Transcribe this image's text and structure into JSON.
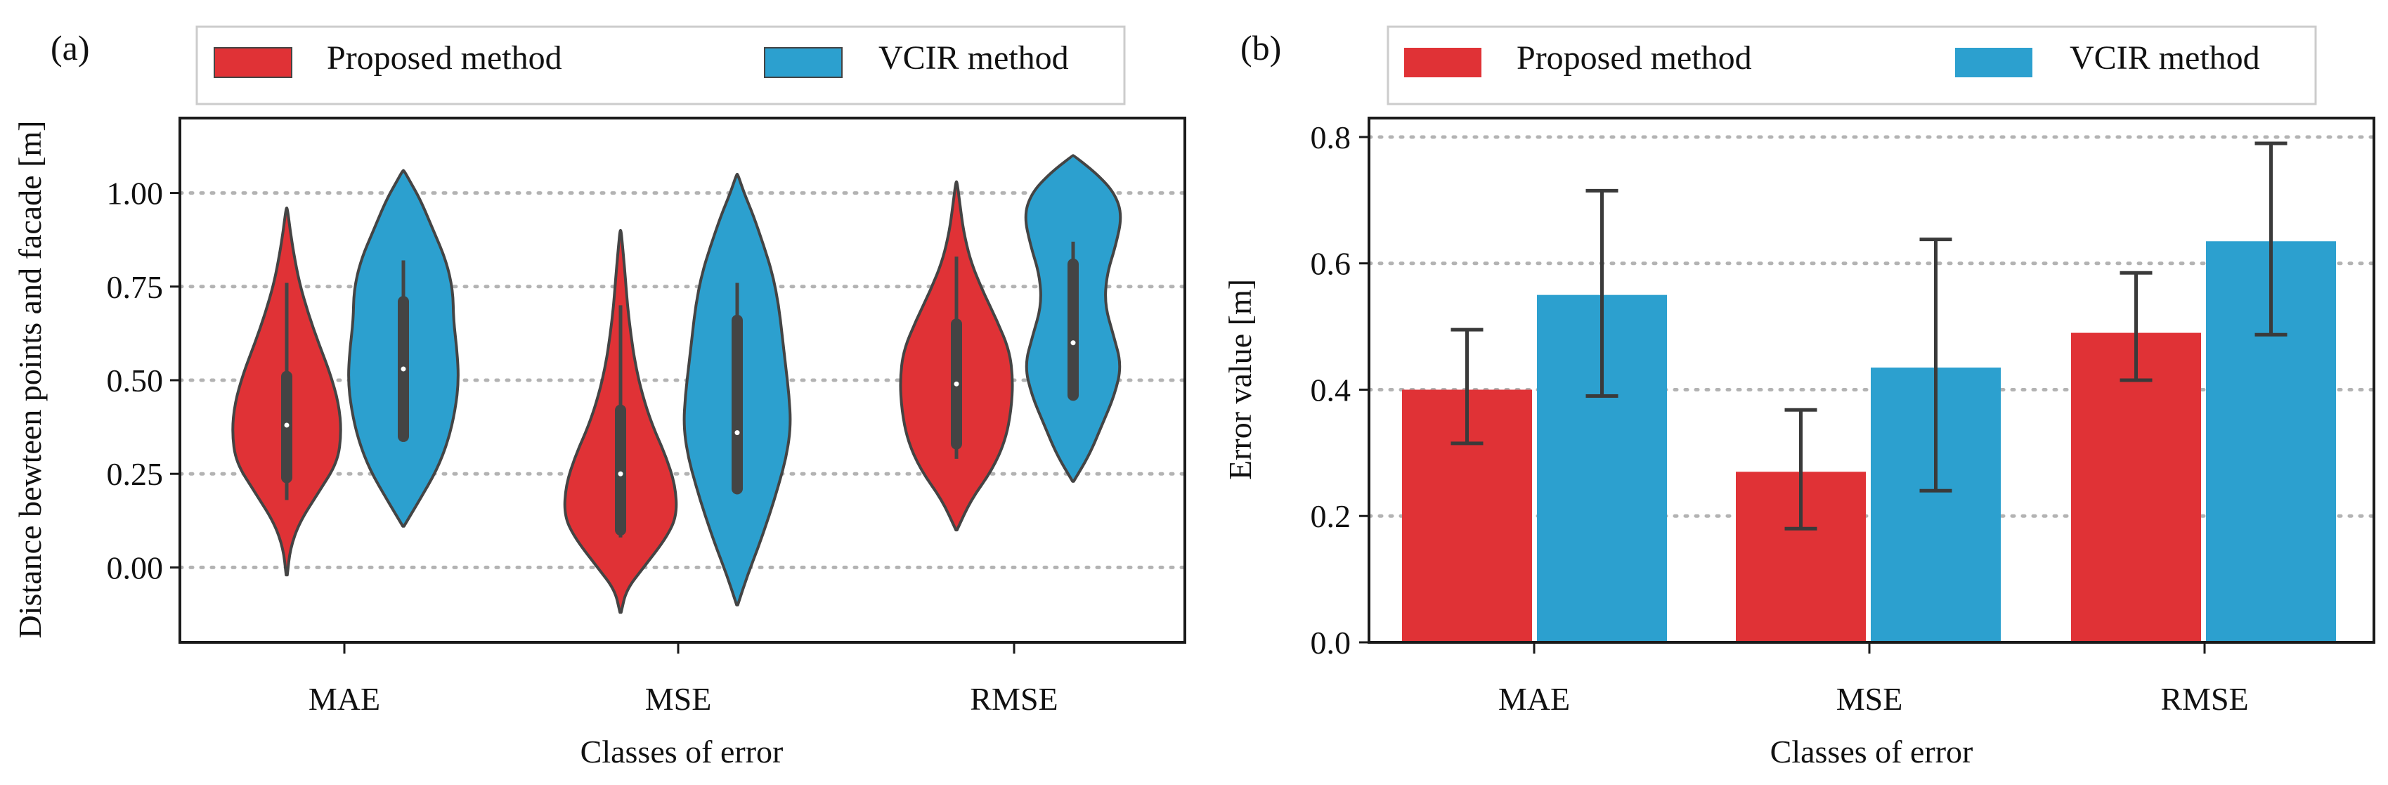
{
  "colors": {
    "proposed": "#e03236",
    "vcir": "#2ca0cf",
    "outline": "#444444",
    "grid": "#b3b3b3",
    "errorbar": "#3a3a3a"
  },
  "chart_data": [
    {
      "panel": "(a)",
      "type": "violin",
      "title": "",
      "xlabel": "Classes of error",
      "ylabel": "Distance bewteen points and facade [m]",
      "ylim": [
        -0.2,
        1.2
      ],
      "yticks": [
        "0.00",
        "0.25",
        "0.50",
        "0.75",
        "1.00"
      ],
      "categories": [
        "MAE",
        "MSE",
        "RMSE"
      ],
      "legend": {
        "position": "top",
        "entries": [
          "Proposed method",
          "VCIR method"
        ]
      },
      "grid": "horizontal dotted",
      "series": [
        {
          "name": "Proposed method",
          "color_key": "proposed",
          "violins": [
            {
              "category": "MAE",
              "median": 0.38,
              "q1": 0.24,
              "q3": 0.51,
              "whisker_low": 0.18,
              "whisker_high": 0.76,
              "profile": [
                [
                  -0.02,
                  0.01
                ],
                [
                  0.05,
                  0.06
                ],
                [
                  0.12,
                  0.22
                ],
                [
                  0.2,
                  0.55
                ],
                [
                  0.28,
                  0.88
                ],
                [
                  0.36,
                  0.95
                ],
                [
                  0.44,
                  0.9
                ],
                [
                  0.52,
                  0.75
                ],
                [
                  0.6,
                  0.55
                ],
                [
                  0.68,
                  0.37
                ],
                [
                  0.76,
                  0.22
                ],
                [
                  0.84,
                  0.12
                ],
                [
                  0.9,
                  0.06
                ],
                [
                  0.96,
                  0.01
                ]
              ]
            },
            {
              "category": "MSE",
              "median": 0.25,
              "q1": 0.1,
              "q3": 0.42,
              "whisker_low": 0.08,
              "whisker_high": 0.7,
              "profile": [
                [
                  -0.12,
                  0.01
                ],
                [
                  -0.06,
                  0.1
                ],
                [
                  0.0,
                  0.4
                ],
                [
                  0.08,
                  0.8
                ],
                [
                  0.14,
                  0.98
                ],
                [
                  0.22,
                  0.95
                ],
                [
                  0.3,
                  0.78
                ],
                [
                  0.38,
                  0.55
                ],
                [
                  0.46,
                  0.38
                ],
                [
                  0.54,
                  0.26
                ],
                [
                  0.62,
                  0.18
                ],
                [
                  0.7,
                  0.12
                ],
                [
                  0.78,
                  0.08
                ],
                [
                  0.85,
                  0.04
                ],
                [
                  0.9,
                  0.01
                ]
              ]
            },
            {
              "category": "RMSE",
              "median": 0.49,
              "q1": 0.33,
              "q3": 0.65,
              "whisker_low": 0.29,
              "whisker_high": 0.83,
              "profile": [
                [
                  0.1,
                  0.01
                ],
                [
                  0.18,
                  0.25
                ],
                [
                  0.26,
                  0.62
                ],
                [
                  0.34,
                  0.85
                ],
                [
                  0.42,
                  0.95
                ],
                [
                  0.5,
                  0.98
                ],
                [
                  0.58,
                  0.92
                ],
                [
                  0.66,
                  0.7
                ],
                [
                  0.74,
                  0.45
                ],
                [
                  0.82,
                  0.24
                ],
                [
                  0.9,
                  0.12
                ],
                [
                  0.97,
                  0.06
                ],
                [
                  1.03,
                  0.01
                ]
              ]
            }
          ]
        },
        {
          "name": "VCIR method",
          "color_key": "vcir",
          "violins": [
            {
              "category": "MAE",
              "median": 0.53,
              "q1": 0.35,
              "q3": 0.71,
              "whisker_low": 0.35,
              "whisker_high": 0.82,
              "profile": [
                [
                  0.11,
                  0.01
                ],
                [
                  0.18,
                  0.28
                ],
                [
                  0.26,
                  0.58
                ],
                [
                  0.34,
                  0.78
                ],
                [
                  0.42,
                  0.9
                ],
                [
                  0.5,
                  0.96
                ],
                [
                  0.58,
                  0.93
                ],
                [
                  0.66,
                  0.87
                ],
                [
                  0.74,
                  0.86
                ],
                [
                  0.82,
                  0.74
                ],
                [
                  0.9,
                  0.52
                ],
                [
                  0.98,
                  0.3
                ],
                [
                  1.03,
                  0.12
                ],
                [
                  1.06,
                  0.01
                ]
              ]
            },
            {
              "category": "MSE",
              "median": 0.36,
              "q1": 0.21,
              "q3": 0.66,
              "whisker_low": 0.21,
              "whisker_high": 0.76,
              "profile": [
                [
                  -0.1,
                  0.01
                ],
                [
                  -0.02,
                  0.18
                ],
                [
                  0.06,
                  0.38
                ],
                [
                  0.14,
                  0.56
                ],
                [
                  0.22,
                  0.72
                ],
                [
                  0.3,
                  0.86
                ],
                [
                  0.38,
                  0.93
                ],
                [
                  0.46,
                  0.9
                ],
                [
                  0.54,
                  0.84
                ],
                [
                  0.62,
                  0.78
                ],
                [
                  0.7,
                  0.72
                ],
                [
                  0.78,
                  0.62
                ],
                [
                  0.86,
                  0.46
                ],
                [
                  0.94,
                  0.28
                ],
                [
                  1.0,
                  0.12
                ],
                [
                  1.05,
                  0.01
                ]
              ]
            },
            {
              "category": "RMSE",
              "median": 0.6,
              "q1": 0.46,
              "q3": 0.81,
              "whisker_low": 0.45,
              "whisker_high": 0.87,
              "profile": [
                [
                  0.23,
                  0.01
                ],
                [
                  0.3,
                  0.28
                ],
                [
                  0.38,
                  0.5
                ],
                [
                  0.46,
                  0.72
                ],
                [
                  0.54,
                  0.84
                ],
                [
                  0.62,
                  0.7
                ],
                [
                  0.7,
                  0.55
                ],
                [
                  0.78,
                  0.58
                ],
                [
                  0.86,
                  0.74
                ],
                [
                  0.94,
                  0.85
                ],
                [
                  1.0,
                  0.72
                ],
                [
                  1.05,
                  0.42
                ],
                [
                  1.1,
                  0.01
                ]
              ]
            }
          ]
        }
      ]
    },
    {
      "panel": "(b)",
      "type": "bar",
      "title": "",
      "xlabel": "Classes of error",
      "ylabel": "Error value [m]",
      "ylim": [
        0.0,
        0.83
      ],
      "yticks": [
        "0.0",
        "0.2",
        "0.4",
        "0.6",
        "0.8"
      ],
      "categories": [
        "MAE",
        "MSE",
        "RMSE"
      ],
      "legend": {
        "position": "top",
        "entries": [
          "Proposed method",
          "VCIR method"
        ]
      },
      "grid": "horizontal dotted",
      "series": [
        {
          "name": "Proposed method",
          "color_key": "proposed",
          "values": [
            0.4,
            0.27,
            0.49
          ],
          "err_low": [
            0.315,
            0.18,
            0.415
          ],
          "err_high": [
            0.495,
            0.368,
            0.585
          ]
        },
        {
          "name": "VCIR method",
          "color_key": "vcir",
          "values": [
            0.55,
            0.435,
            0.635
          ],
          "err_low": [
            0.39,
            0.24,
            0.487
          ],
          "err_high": [
            0.715,
            0.638,
            0.79
          ]
        }
      ]
    }
  ]
}
